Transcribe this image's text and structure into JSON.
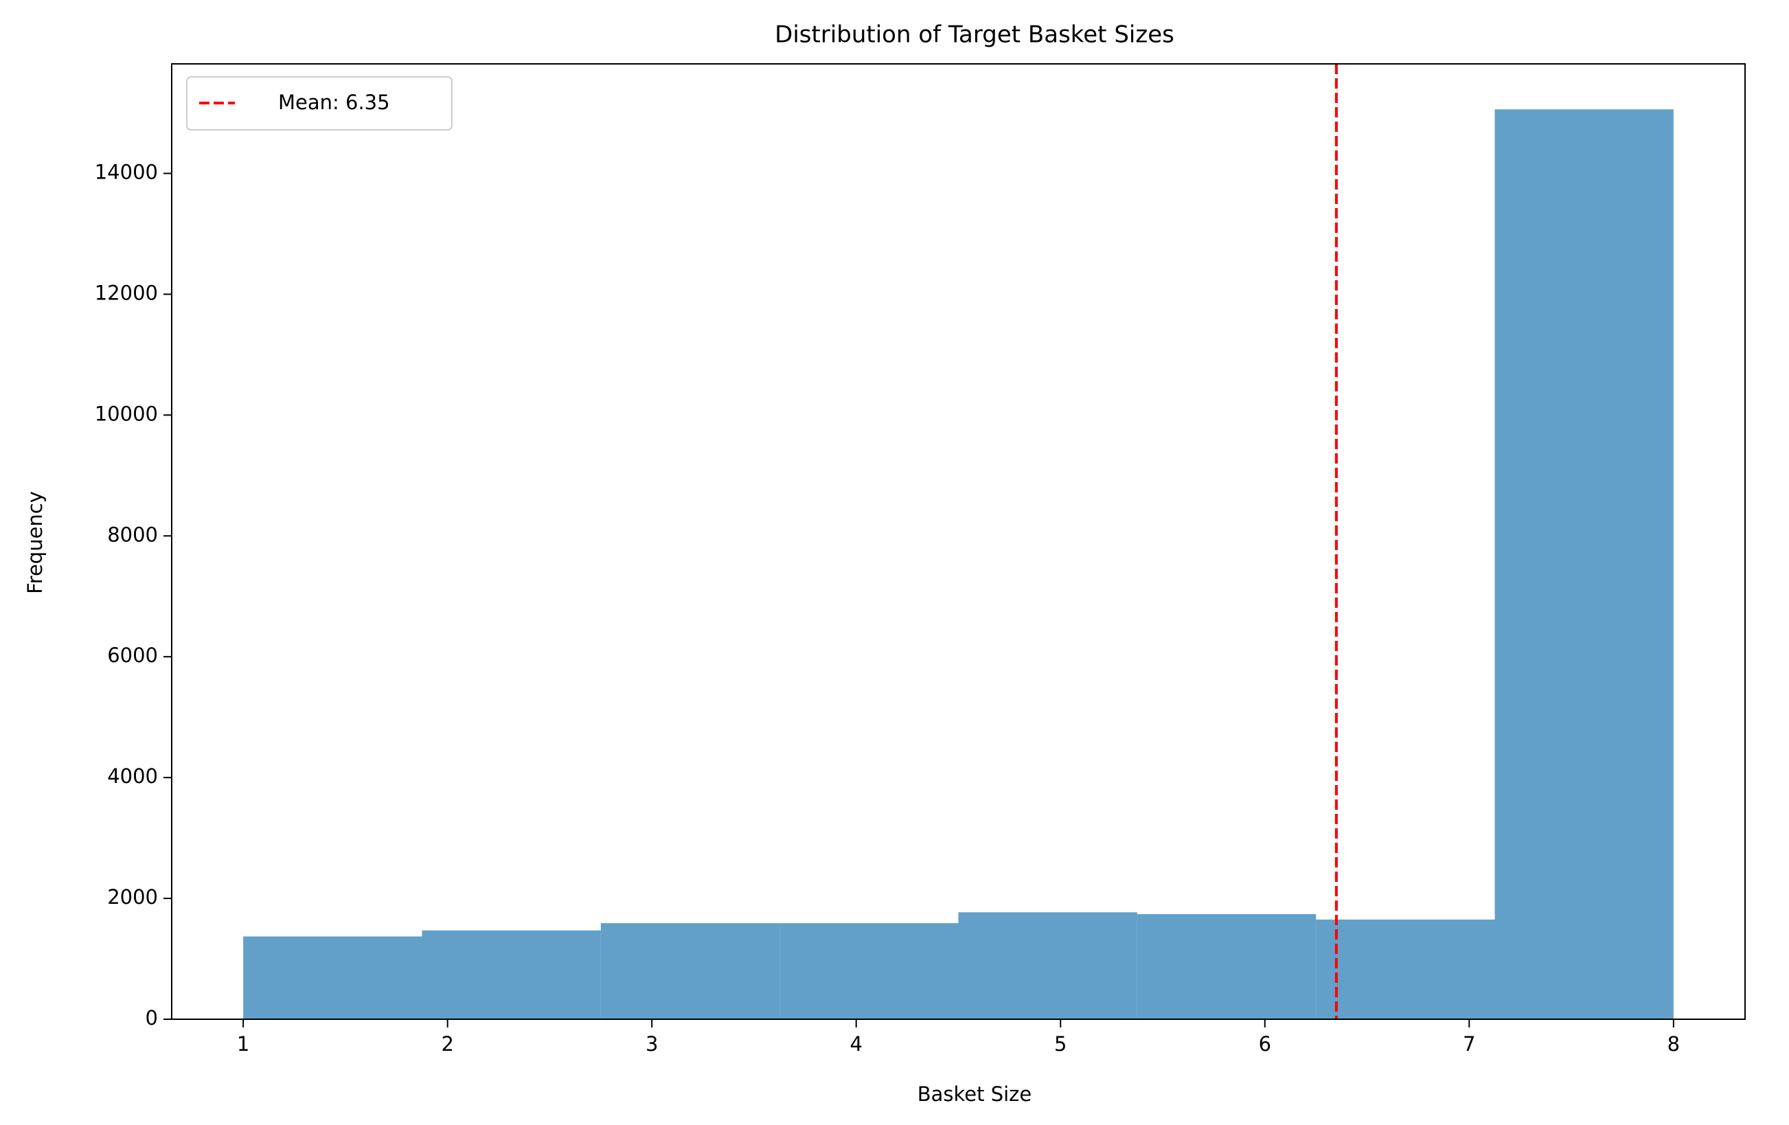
{
  "chart_data": {
    "type": "histogram",
    "title": "Distribution of Target Basket Sizes",
    "x_label": "Basket Size",
    "y_label": "Frequency",
    "bins": [
      1,
      1.875,
      2.75,
      3.625,
      4.5,
      5.375,
      6.25,
      7.125,
      8
    ],
    "values": [
      1370,
      1470,
      1590,
      1590,
      1770,
      1740,
      1650,
      15060
    ],
    "color": "#1f77b4",
    "alpha": 0.7,
    "xlim": [
      0.65,
      8.35
    ],
    "xticks": [
      1,
      2,
      3,
      4,
      5,
      6,
      7,
      8
    ],
    "ylim": [
      0,
      15813
    ],
    "yticks": [
      0,
      2000,
      4000,
      6000,
      8000,
      10000,
      12000,
      14000
    ],
    "mean_line": {
      "value": 6.35,
      "label": "Mean: 6.35",
      "color": "#ff0000"
    },
    "legend": "upper left"
  }
}
